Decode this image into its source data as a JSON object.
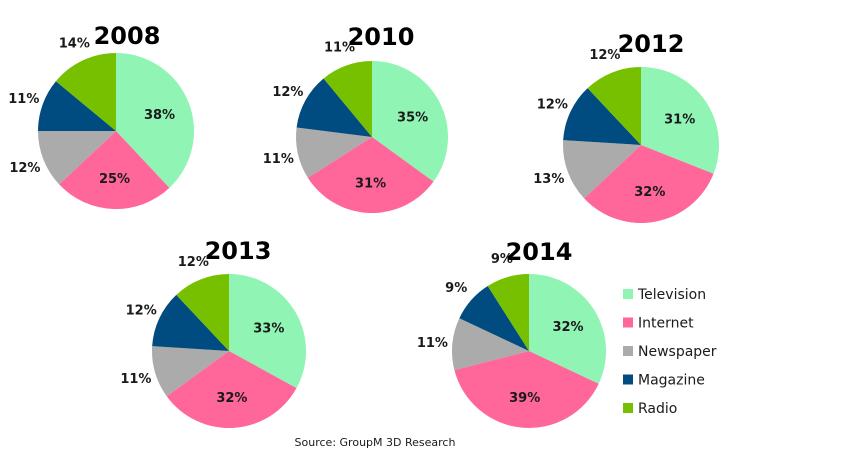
{
  "chart_data": {
    "type": "pie",
    "categories": [
      "Television",
      "Internet",
      "Newspaper",
      "Magazine",
      "Radio"
    ],
    "colors": {
      "Television": "#90F4B4",
      "Internet": "#FF6699",
      "Newspaper": "#ABABAB",
      "Magazine": "#004C80",
      "Radio": "#77C000"
    },
    "charts": [
      {
        "title": "2008",
        "values": [
          38,
          25,
          12,
          11,
          14
        ],
        "labels": [
          "38%",
          "25%",
          "12%",
          "11%",
          "14%"
        ]
      },
      {
        "title": "2010",
        "values": [
          35,
          31,
          11,
          12,
          11
        ],
        "labels": [
          "35%",
          "31%",
          "11%",
          "12%",
          "11%"
        ]
      },
      {
        "title": "2012",
        "values": [
          31,
          32,
          13,
          12,
          12
        ],
        "labels": [
          "31%",
          "32%",
          "13%",
          "12%",
          "12%"
        ]
      },
      {
        "title": "2013",
        "values": [
          33,
          32,
          11,
          12,
          12
        ],
        "labels": [
          "33%",
          "32%",
          "11%",
          "12%",
          "12%"
        ]
      },
      {
        "title": "2014",
        "values": [
          32,
          39,
          11,
          9,
          9
        ],
        "labels": [
          "32%",
          "39%",
          "11%",
          "9%",
          "9%"
        ]
      }
    ],
    "legend": [
      "Television",
      "Internet",
      "Newspaper",
      "Magazine",
      "Radio"
    ],
    "legend_position": "right"
  },
  "source": "Source: GroupM 3D Research"
}
